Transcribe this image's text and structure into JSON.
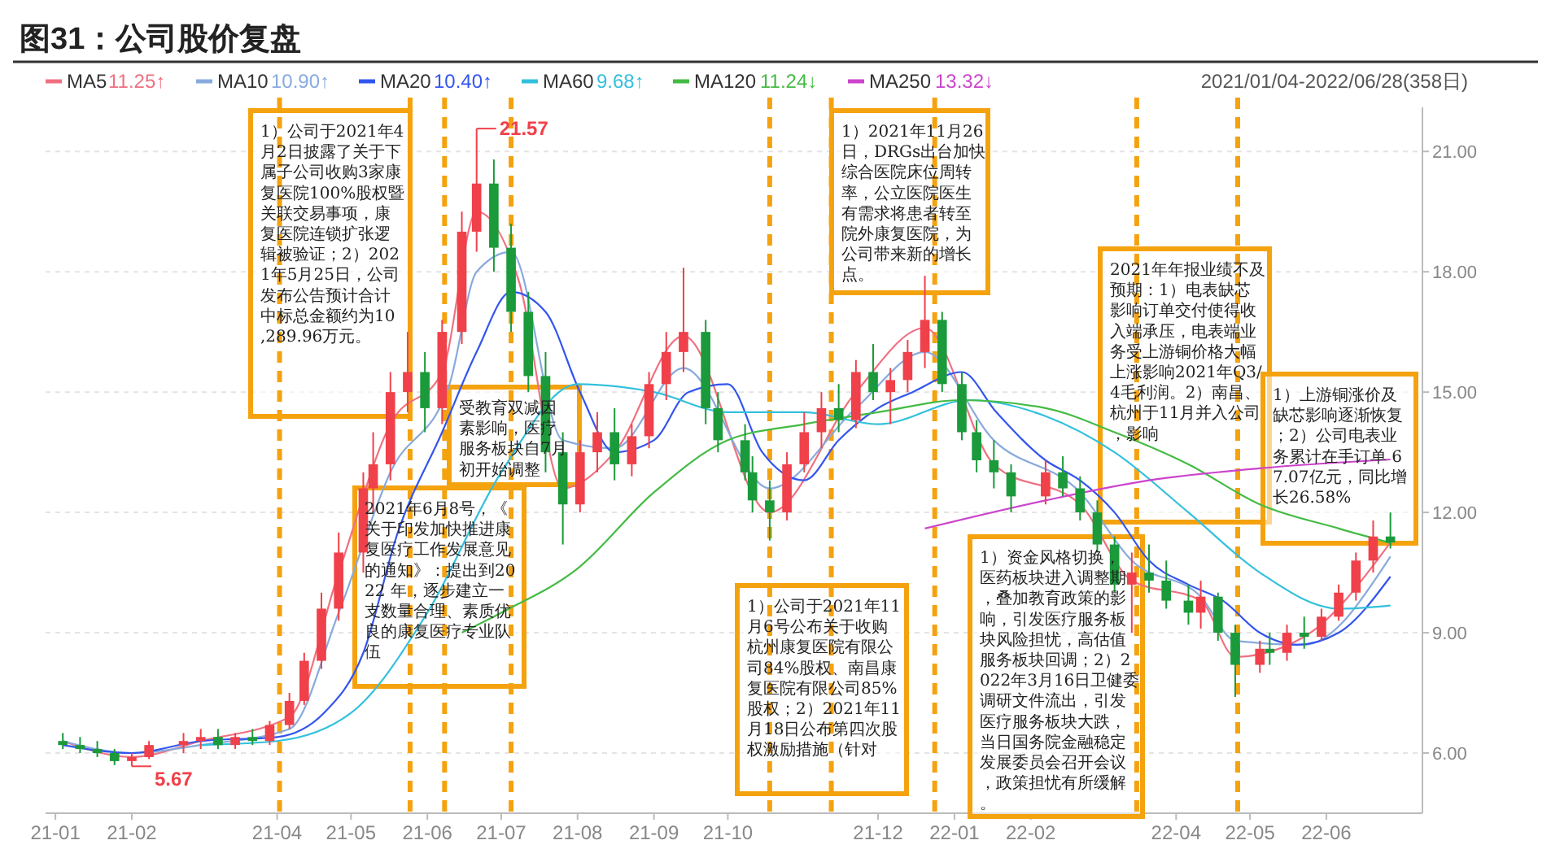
{
  "chart_data": {
    "type": "candlestick",
    "title": "图31：公司股价复盘",
    "xlim": [
      "2020-12-28",
      "2022-07-10"
    ],
    "xticks": [
      {
        "value": "2021-01-01",
        "label": "21-01"
      },
      {
        "value": "2021-02-01",
        "label": "21-02"
      },
      {
        "value": "2021-04-01",
        "label": "21-04"
      },
      {
        "value": "2021-05-01",
        "label": "21-05"
      },
      {
        "value": "2021-06-01",
        "label": "21-06"
      },
      {
        "value": "2021-07-01",
        "label": "21-07"
      },
      {
        "value": "2021-08-01",
        "label": "21-08"
      },
      {
        "value": "2021-09-01",
        "label": "21-09"
      },
      {
        "value": "2021-10-01",
        "label": "21-10"
      },
      {
        "value": "2021-12-01",
        "label": "21-12"
      },
      {
        "value": "2022-01-01",
        "label": "22-01"
      },
      {
        "value": "2022-02-01",
        "label": "22-02"
      },
      {
        "value": "2022-04-01",
        "label": "22-04"
      },
      {
        "value": "2022-05-01",
        "label": "22-05"
      },
      {
        "value": "2022-06-01",
        "label": "22-06"
      }
    ],
    "ylim": [
      4.5,
      22.1
    ],
    "yticks": [
      {
        "value": 6,
        "label": "6.00"
      },
      {
        "value": 9,
        "label": "9.00"
      },
      {
        "value": 12,
        "label": "12.00"
      },
      {
        "value": 15,
        "label": "15.00"
      },
      {
        "value": 18,
        "label": "18.00"
      },
      {
        "value": 21,
        "label": "21.00"
      }
    ],
    "grid": "y",
    "legend": "top left",
    "colors": [
      "#1a9a3a",
      "#1a9a3a",
      "#1a9a3a",
      "#1a9a3a",
      "#f0404a",
      "#f0404a",
      "#f0404a",
      "#f0404a",
      "#1a9a3a",
      "#f0404a",
      "#1a9a3a",
      "#f0404a",
      "#f0404a",
      "#f0404a",
      "#f0404a",
      "#f0404a",
      "#f0404a",
      "#f0404a",
      "#f0404a",
      "#f0404a",
      "#1a9a3a",
      "#f0404a",
      "#f0404a",
      "#f0404a",
      "#1a9a3a",
      "#1a9a3a",
      "#1a9a3a",
      "#1a9a3a",
      "#1a9a3a",
      "#f0404a",
      "#f0404a",
      "#1a9a3a",
      "#f0404a",
      "#f0404a",
      "#f0404a",
      "#f0404a",
      "#1a9a3a",
      "#1a9a3a",
      "#1a9a3a",
      "#1a9a3a",
      "#1a9a3a",
      "#f0404a",
      "#f0404a",
      "#f0404a",
      "#1a9a3a",
      "#f0404a",
      "#1a9a3a",
      "#f0404a",
      "#f0404a",
      "#f0404a",
      "#1a9a3a",
      "#1a9a3a",
      "#1a9a3a",
      "#1a9a3a",
      "#1a9a3a",
      "#f0404a",
      "#1a9a3a",
      "#1a9a3a",
      "#1a9a3a",
      "#1a9a3a",
      "#f0404a",
      "#1a9a3a",
      "#1a9a3a",
      "#1a9a3a",
      "#f0404a",
      "#1a9a3a",
      "#1a9a3a",
      "#f0404a",
      "#1a9a3a",
      "#f0404a",
      "#1a9a3a",
      "#f0404a",
      "#f0404a",
      "#f0404a",
      "#f0404a",
      "#1a9a3a"
    ],
    "x": [
      "2021-01-04",
      "2021-01-11",
      "2021-01-18",
      "2021-01-25",
      "2021-02-01",
      "2021-02-08",
      "2021-02-22",
      "2021-03-01",
      "2021-03-08",
      "2021-03-15",
      "2021-03-22",
      "2021-03-29",
      "2021-04-06",
      "2021-04-12",
      "2021-04-19",
      "2021-04-26",
      "2021-05-06",
      "2021-05-10",
      "2021-05-17",
      "2021-05-24",
      "2021-05-31",
      "2021-06-07",
      "2021-06-15",
      "2021-06-21",
      "2021-06-28",
      "2021-07-05",
      "2021-07-12",
      "2021-07-19",
      "2021-07-26",
      "2021-08-02",
      "2021-08-09",
      "2021-08-16",
      "2021-08-23",
      "2021-08-30",
      "2021-09-06",
      "2021-09-13",
      "2021-09-22",
      "2021-09-27",
      "2021-10-08",
      "2021-10-11",
      "2021-10-18",
      "2021-10-25",
      "2021-11-01",
      "2021-11-08",
      "2021-11-15",
      "2021-11-22",
      "2021-11-29",
      "2021-12-06",
      "2021-12-13",
      "2021-12-20",
      "2021-12-27",
      "2022-01-04",
      "2022-01-10",
      "2022-01-17",
      "2022-01-24",
      "2022-02-07",
      "2022-02-14",
      "2022-02-21",
      "2022-02-28",
      "2022-03-07",
      "2022-03-14",
      "2022-03-21",
      "2022-03-28",
      "2022-04-06",
      "2022-04-11",
      "2022-04-18",
      "2022-04-25",
      "2022-05-05",
      "2022-05-09",
      "2022-05-16",
      "2022-05-23",
      "2022-05-30",
      "2022-06-06",
      "2022-06-13",
      "2022-06-20",
      "2022-06-27"
    ],
    "ohlc": [
      [
        6.3,
        6.5,
        6.1,
        6.2
      ],
      [
        6.2,
        6.4,
        6.0,
        6.1
      ],
      [
        6.1,
        6.3,
        5.9,
        6.0
      ],
      [
        6.0,
        6.1,
        5.7,
        5.8
      ],
      [
        5.8,
        6.0,
        5.67,
        5.9
      ],
      [
        5.9,
        6.3,
        5.85,
        6.2
      ],
      [
        6.2,
        6.5,
        6.0,
        6.3
      ],
      [
        6.3,
        6.6,
        6.1,
        6.4
      ],
      [
        6.4,
        6.6,
        6.1,
        6.2
      ],
      [
        6.2,
        6.5,
        6.1,
        6.4
      ],
      [
        6.4,
        6.6,
        6.2,
        6.3
      ],
      [
        6.3,
        6.8,
        6.2,
        6.7
      ],
      [
        6.7,
        7.5,
        6.6,
        7.3
      ],
      [
        7.3,
        8.5,
        7.2,
        8.3
      ],
      [
        8.3,
        10.0,
        8.1,
        9.6
      ],
      [
        9.6,
        11.5,
        9.3,
        11.0
      ],
      [
        11.0,
        13.0,
        10.5,
        12.6
      ],
      [
        12.6,
        14.0,
        12.0,
        13.2
      ],
      [
        13.2,
        15.5,
        12.8,
        15.0
      ],
      [
        15.0,
        16.5,
        14.5,
        15.5
      ],
      [
        15.5,
        16.0,
        14.0,
        14.6
      ],
      [
        14.6,
        16.8,
        14.2,
        16.5
      ],
      [
        16.5,
        19.5,
        16.2,
        19.0
      ],
      [
        19.0,
        21.57,
        18.5,
        20.2
      ],
      [
        20.2,
        20.8,
        18.0,
        18.6
      ],
      [
        18.6,
        19.2,
        16.5,
        17.0
      ],
      [
        17.0,
        17.5,
        15.0,
        15.4
      ],
      [
        15.4,
        16.0,
        13.0,
        13.5
      ],
      [
        13.5,
        14.0,
        11.2,
        12.2
      ],
      [
        12.2,
        13.8,
        12.0,
        13.5
      ],
      [
        13.5,
        14.5,
        13.0,
        14.0
      ],
      [
        14.0,
        14.6,
        12.8,
        13.2
      ],
      [
        13.2,
        14.2,
        12.9,
        13.9
      ],
      [
        13.9,
        15.5,
        13.6,
        15.2
      ],
      [
        15.2,
        16.5,
        14.8,
        16.0
      ],
      [
        16.0,
        18.1,
        15.5,
        16.5
      ],
      [
        16.5,
        16.8,
        14.2,
        14.6
      ],
      [
        14.6,
        15.0,
        13.5,
        13.8
      ],
      [
        13.8,
        14.2,
        12.8,
        13.0
      ],
      [
        13.0,
        13.4,
        12.0,
        12.3
      ],
      [
        12.3,
        12.8,
        11.3,
        12.0
      ],
      [
        12.0,
        13.5,
        11.8,
        13.2
      ],
      [
        13.2,
        14.5,
        13.0,
        14.0
      ],
      [
        14.0,
        15.0,
        13.6,
        14.6
      ],
      [
        14.6,
        15.2,
        14.0,
        14.3
      ],
      [
        14.3,
        15.8,
        14.1,
        15.5
      ],
      [
        15.5,
        16.2,
        14.8,
        15.0
      ],
      [
        15.0,
        15.6,
        14.2,
        15.3
      ],
      [
        15.3,
        16.3,
        15.0,
        16.0
      ],
      [
        16.0,
        17.9,
        15.6,
        16.8
      ],
      [
        16.8,
        17.0,
        15.0,
        15.2
      ],
      [
        15.2,
        15.5,
        13.8,
        14.0
      ],
      [
        14.0,
        14.3,
        13.0,
        13.3
      ],
      [
        13.3,
        13.8,
        12.6,
        13.0
      ],
      [
        13.0,
        13.2,
        12.0,
        12.4
      ],
      [
        12.4,
        13.3,
        12.2,
        13.0
      ],
      [
        13.0,
        13.4,
        12.4,
        12.6
      ],
      [
        12.6,
        12.9,
        11.8,
        12.0
      ],
      [
        12.0,
        12.3,
        11.0,
        11.2
      ],
      [
        11.2,
        11.4,
        10.0,
        10.2
      ],
      [
        10.2,
        11.0,
        9.0,
        10.5
      ],
      [
        10.5,
        11.2,
        10.0,
        10.3
      ],
      [
        10.3,
        10.8,
        9.6,
        9.8
      ],
      [
        9.8,
        10.2,
        9.2,
        9.5
      ],
      [
        9.5,
        10.3,
        9.1,
        9.9
      ],
      [
        9.9,
        10.0,
        8.8,
        9.0
      ],
      [
        9.0,
        9.2,
        7.4,
        8.2
      ],
      [
        8.2,
        8.8,
        8.0,
        8.6
      ],
      [
        8.6,
        9.0,
        8.2,
        8.5
      ],
      [
        8.5,
        9.2,
        8.3,
        9.0
      ],
      [
        9.0,
        9.4,
        8.6,
        8.9
      ],
      [
        8.9,
        9.6,
        8.8,
        9.4
      ],
      [
        9.4,
        10.2,
        9.3,
        10.0
      ],
      [
        10.0,
        11.0,
        9.8,
        10.8
      ],
      [
        10.8,
        11.8,
        10.5,
        11.4
      ],
      [
        11.4,
        12.0,
        11.1,
        11.25
      ]
    ],
    "series": [
      {
        "name": "MA5",
        "type": "line",
        "color": "#f07080",
        "x": [
          "2021-01-04",
          "2021-02-01",
          "2021-03-01",
          "2021-04-06",
          "2021-04-26",
          "2021-05-17",
          "2021-06-07",
          "2021-06-21",
          "2021-07-08",
          "2021-07-26",
          "2021-08-16",
          "2021-09-13",
          "2021-10-18",
          "2021-11-22",
          "2021-12-20",
          "2022-01-17",
          "2022-02-21",
          "2022-03-14",
          "2022-04-11",
          "2022-04-25",
          "2022-05-23",
          "2022-06-27"
        ],
        "values": [
          6.3,
          5.9,
          6.3,
          6.9,
          10.5,
          14.2,
          15.5,
          19.5,
          17.8,
          12.6,
          13.5,
          16.4,
          12.0,
          15.0,
          16.6,
          13.2,
          12.2,
          10.3,
          9.8,
          8.4,
          8.9,
          11.25
        ]
      },
      {
        "name": "MA10",
        "type": "line",
        "color": "#88aadd",
        "x": [
          "2021-01-04",
          "2021-02-01",
          "2021-03-01",
          "2021-04-06",
          "2021-04-26",
          "2021-05-17",
          "2021-06-10",
          "2021-06-21",
          "2021-07-05",
          "2021-07-26",
          "2021-08-16",
          "2021-09-13",
          "2021-10-18",
          "2021-11-22",
          "2021-12-20",
          "2022-01-17",
          "2022-02-21",
          "2022-03-14",
          "2022-04-11",
          "2022-04-25",
          "2022-05-23",
          "2022-06-27"
        ],
        "values": [
          6.3,
          6.0,
          6.2,
          6.6,
          9.5,
          13.0,
          15.2,
          18.0,
          18.5,
          13.8,
          13.6,
          15.6,
          12.6,
          14.6,
          16.0,
          13.8,
          12.5,
          10.8,
          9.9,
          8.8,
          8.7,
          10.9
        ]
      },
      {
        "name": "MA20",
        "type": "line",
        "color": "#3355ee",
        "x": [
          "2021-01-04",
          "2021-02-01",
          "2021-03-01",
          "2021-04-01",
          "2021-04-20",
          "2021-05-06",
          "2021-05-20",
          "2021-06-07",
          "2021-06-21",
          "2021-07-05",
          "2021-07-19",
          "2021-08-02",
          "2021-08-16",
          "2021-09-01",
          "2021-09-15",
          "2021-10-01",
          "2021-10-15",
          "2021-11-01",
          "2021-11-15",
          "2021-12-01",
          "2021-12-15",
          "2022-01-04",
          "2022-01-18",
          "2022-02-07",
          "2022-02-21",
          "2022-03-07",
          "2022-03-21",
          "2022-04-06",
          "2022-04-20",
          "2022-05-05",
          "2022-05-20",
          "2022-06-06",
          "2022-06-27"
        ],
        "values": [
          6.2,
          6.0,
          6.3,
          6.4,
          7.0,
          8.5,
          11.5,
          14.0,
          16.0,
          17.5,
          17.0,
          15.0,
          13.5,
          13.8,
          15.0,
          15.2,
          13.5,
          12.8,
          13.8,
          14.6,
          15.0,
          15.5,
          14.5,
          13.3,
          12.8,
          12.0,
          10.8,
          10.2,
          9.8,
          9.0,
          8.7,
          9.0,
          10.4
        ]
      },
      {
        "name": "MA60",
        "type": "line",
        "color": "#33c0dd",
        "x": [
          "2021-03-01",
          "2021-04-01",
          "2021-05-01",
          "2021-06-01",
          "2021-07-01",
          "2021-08-01",
          "2021-09-01",
          "2021-10-01",
          "2021-11-01",
          "2021-12-01",
          "2022-01-07",
          "2022-02-07",
          "2022-03-07",
          "2022-04-06",
          "2022-05-05",
          "2022-06-06",
          "2022-06-27"
        ],
        "values": [
          6.2,
          6.3,
          7.0,
          9.5,
          13.0,
          15.2,
          15.0,
          14.5,
          14.5,
          14.2,
          14.8,
          14.4,
          13.5,
          12.0,
          10.5,
          9.6,
          9.68
        ]
      },
      {
        "name": "MA120",
        "type": "line",
        "color": "#44bb44",
        "x": [
          "2021-06-15",
          "2021-07-01",
          "2021-08-01",
          "2021-09-01",
          "2021-10-01",
          "2021-11-01",
          "2021-12-01",
          "2022-01-04",
          "2022-02-07",
          "2022-03-07",
          "2022-04-06",
          "2022-05-05",
          "2022-06-06",
          "2022-06-27"
        ],
        "values": [
          9.0,
          9.5,
          10.6,
          12.5,
          13.8,
          14.2,
          14.5,
          14.8,
          14.6,
          14.0,
          13.2,
          12.2,
          11.6,
          11.24
        ]
      },
      {
        "name": "MA250",
        "type": "line",
        "color": "#cc44cc",
        "x": [
          "2021-12-20",
          "2022-02-07",
          "2022-03-21",
          "2022-05-05",
          "2022-06-27"
        ],
        "values": [
          11.6,
          12.3,
          12.8,
          13.1,
          13.32
        ]
      }
    ],
    "ref_lines": [
      {
        "axis": "x",
        "value": "2021-04-02",
        "label": null,
        "color": "#f5a20f",
        "line_style": "dashed"
      },
      {
        "axis": "x",
        "value": "2021-05-25",
        "label": null,
        "color": "#f5a20f",
        "line_style": "dashed"
      },
      {
        "axis": "x",
        "value": "2021-06-08",
        "label": null,
        "color": "#f5a20f",
        "line_style": "dashed"
      },
      {
        "axis": "x",
        "value": "2021-07-05",
        "label": null,
        "color": "#f5a20f",
        "line_style": "dashed"
      },
      {
        "axis": "x",
        "value": "2021-10-18",
        "label": null,
        "color": "#f5a20f",
        "line_style": "dashed"
      },
      {
        "axis": "x",
        "value": "2021-11-12",
        "label": null,
        "color": "#f5a20f",
        "line_style": "dashed"
      },
      {
        "axis": "x",
        "value": "2021-12-24",
        "label": null,
        "color": "#f5a20f",
        "line_style": "dashed"
      },
      {
        "axis": "x",
        "value": "2022-03-16",
        "label": null,
        "color": "#f5a20f",
        "line_style": "dashed"
      },
      {
        "axis": "x",
        "value": "2022-04-26",
        "label": null,
        "color": "#f5a20f",
        "line_style": "dashed"
      }
    ],
    "annotations": [
      "2021/01/04-2022/06/28(358日)",
      "11.25↑",
      "10.90↑",
      "10.40↑",
      "9.68↑",
      "11.24↓",
      "13.32↓",
      {
        "text": "21.57",
        "x": "2021-06-21",
        "y": 21.57
      },
      {
        "text": "5.67",
        "x": "2021-02-01",
        "y": 5.67
      },
      "1）公司于2021年4月2日披露了关于下属子公司收购3家康复医院100%股权暨关联交易事项，康复医院连锁扩张逻辑被验证；2）2021年5月25日，公司发布公告预计合计中标总金额约为10,289.96万元。",
      "2021年6月8号，《关于印发加快推进康复医疗工作发展意见的通知》：提出到2022 年，逐步建立一支数量合理、素质优良的康复医疗专业队伍",
      "受教育双减因素影响，医疗服务板块自7月初开始调整",
      "1）2021年11月26日，DRGs出台加快综合医院床位周转率，公立医院医生有需求将患者转至院外康复医院，为公司带来新的增长点。",
      "1）公司于2021年11月6号公布关于收购杭州康复医院有限公司84%股权、南昌康复医院有限公司85%股权；2）2021年11月18日公布第四次股权激励措施（针对",
      "1）资金风格切换，医药板块进入调整期，叠加教育政策的影响，引发医疗服务板块风险担忧，高估值服务板块回调；2）2022年3月16日卫健委调研文件流出，引发医疗服务板块大跌，当日国务院金融稳定发展委员会召开会议，政策担忧有所缓解。",
      "2021年年报业绩不及预期：1）电表缺芯影响订单交付使得收入端承压，电表端业务受上游铜价格大幅上涨影响2021年Q3/4毛利润。2）南昌、杭州于11月并入公司，影响",
      "1）上游铜涨价及缺芯影响逐渐恢复；2）公司电表业务累计在手订单 67.07亿元，同比增长26.58%"
    ]
  }
}
